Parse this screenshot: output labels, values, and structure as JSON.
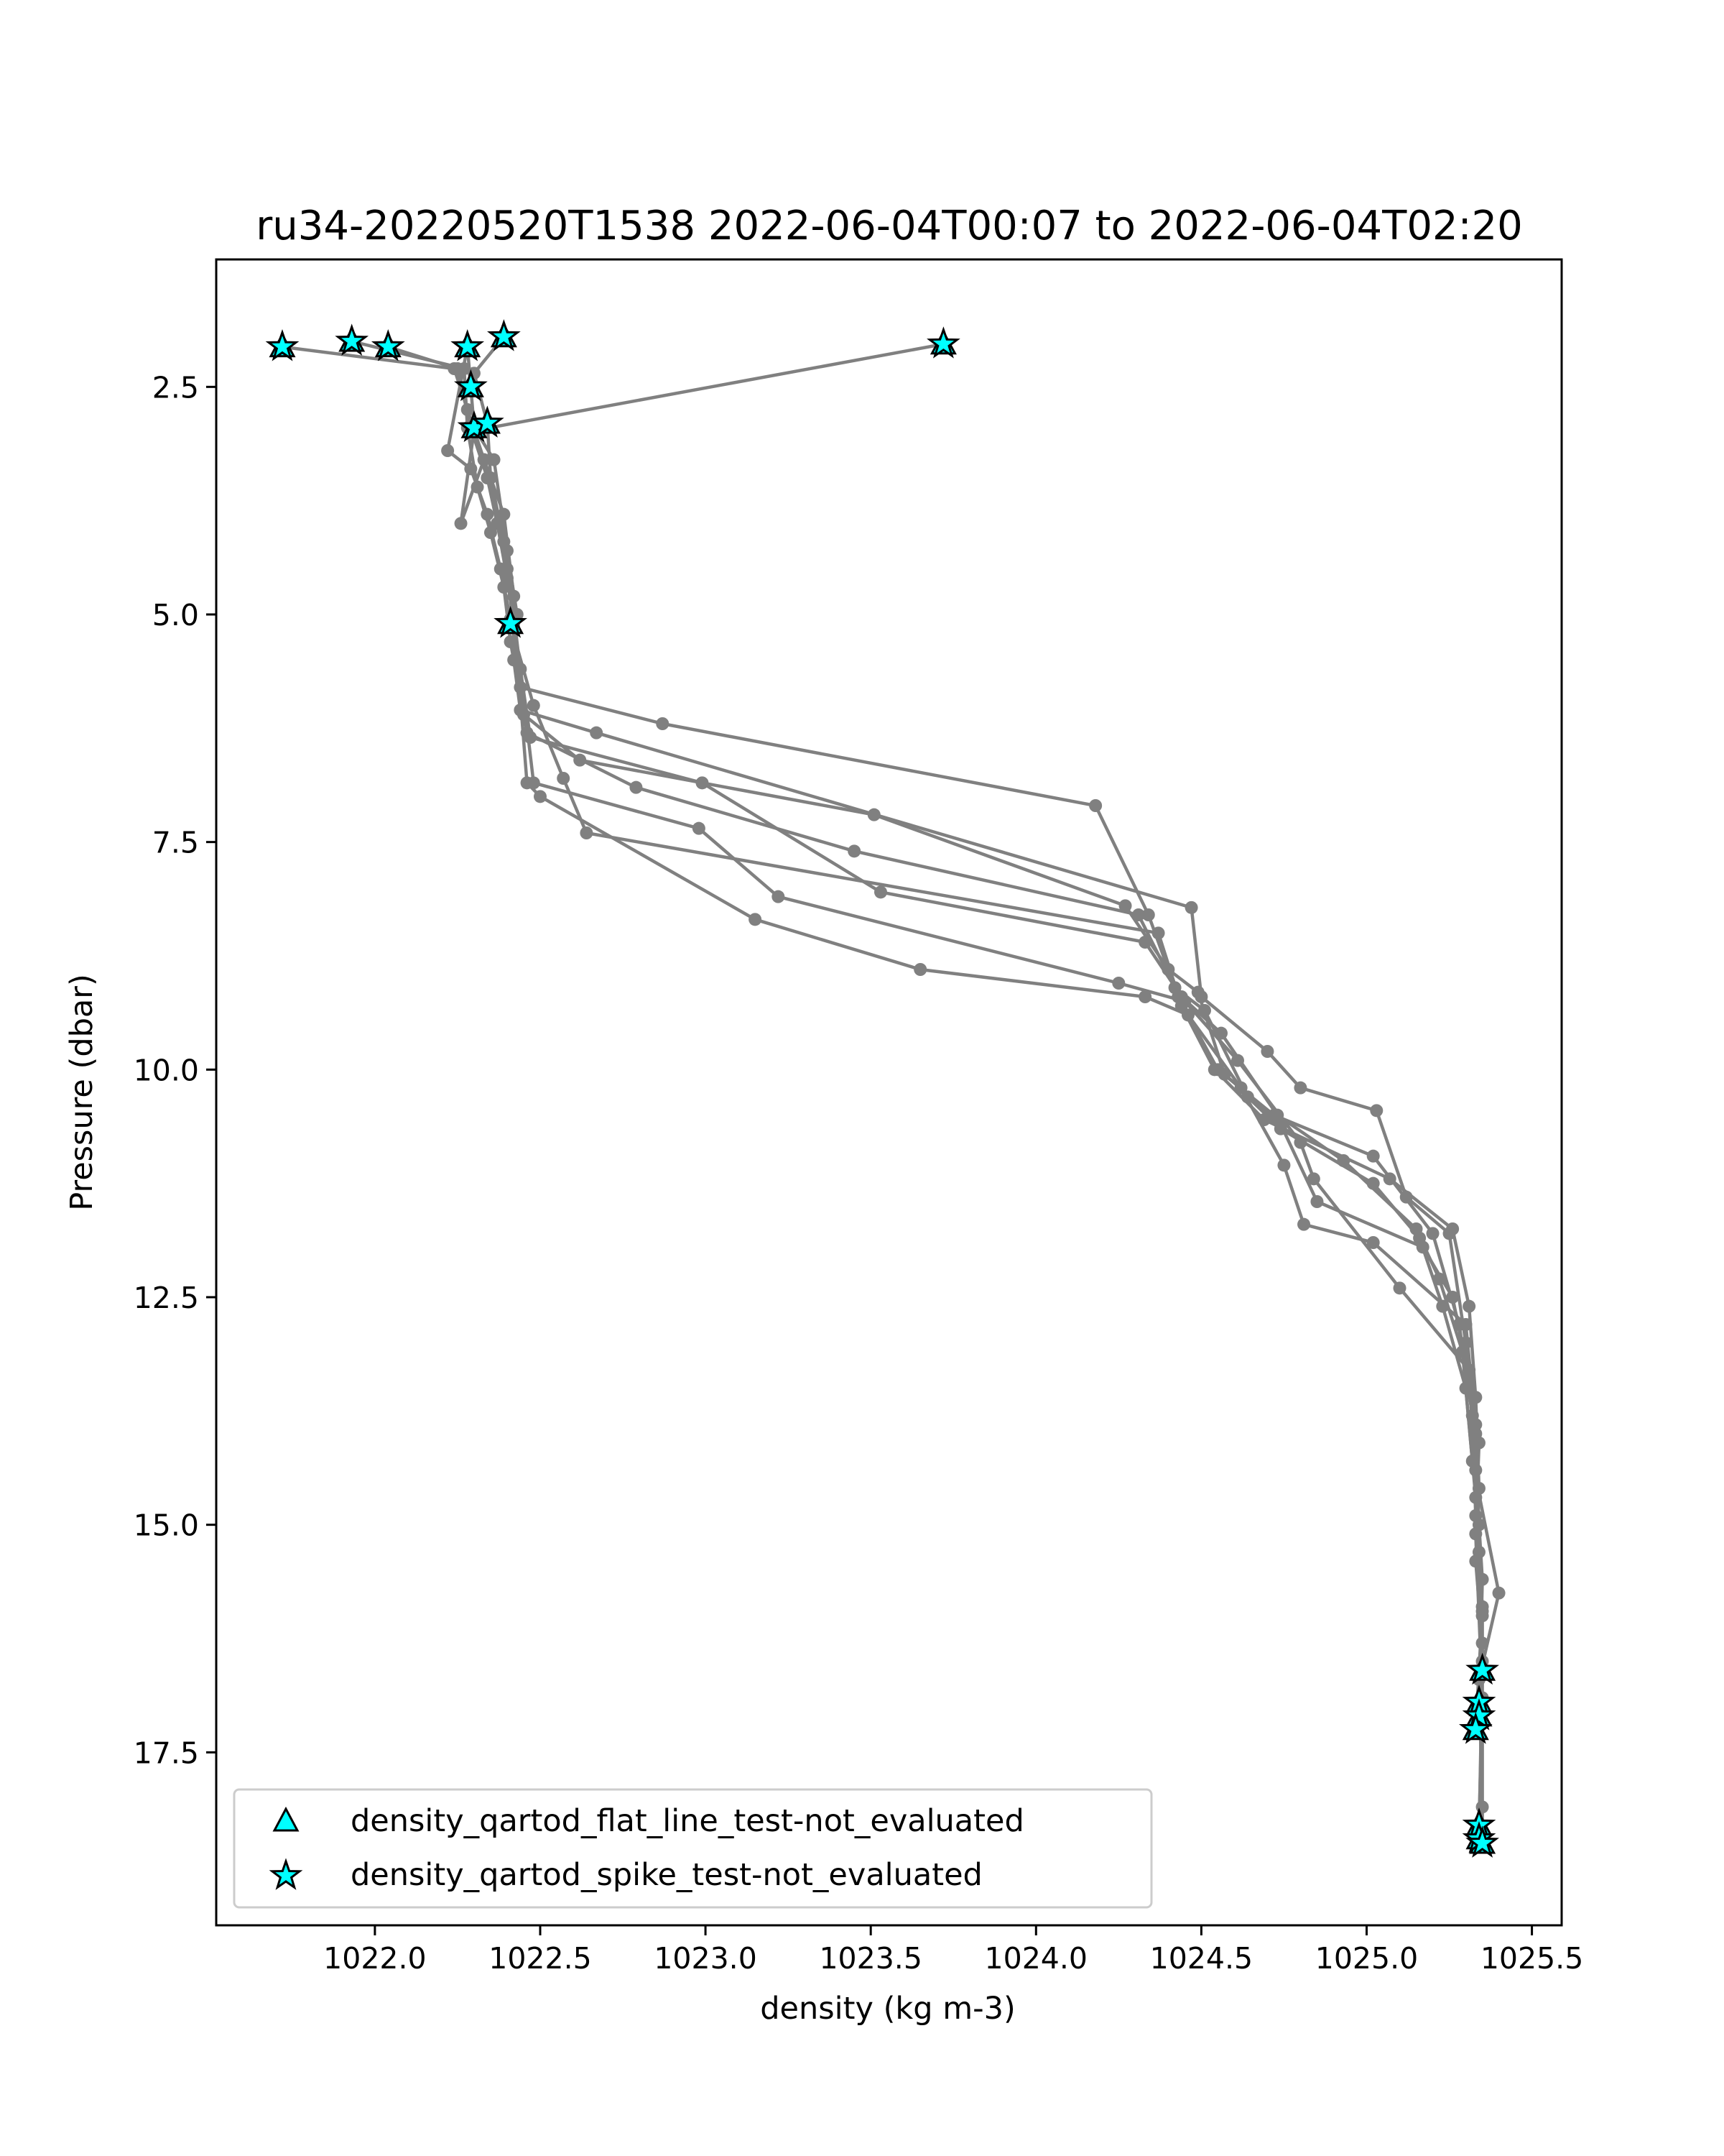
{
  "chart_data": {
    "type": "line",
    "title": "ru34-20220520T1538 2022-06-04T00:07 to 2022-06-04T02:20",
    "xlabel": "density (kg m-3)",
    "ylabel": "Pressure (dbar)",
    "xlim": [
      1021.52,
      1025.59
    ],
    "ylim": [
      19.4,
      1.1
    ],
    "y_inverted": true,
    "xticks": [
      "1022.0",
      "1022.5",
      "1023.0",
      "1023.5",
      "1024.0",
      "1024.5",
      "1025.0",
      "1025.5"
    ],
    "xtick_values": [
      1022.0,
      1022.5,
      1023.0,
      1023.5,
      1024.0,
      1024.5,
      1025.0,
      1025.5
    ],
    "yticks": [
      "2.5",
      "5.0",
      "7.5",
      "10.0",
      "12.5",
      "15.0",
      "17.5"
    ],
    "ytick_values": [
      2.5,
      5.0,
      7.5,
      10.0,
      12.5,
      15.0,
      17.5
    ],
    "grid": false,
    "legend_position": "lower-left",
    "colors": {
      "line": "#808080",
      "marker": "#00ffff",
      "marker_edge": "#000000"
    },
    "series": [
      {
        "values": [
          [
            1022.28,
            2.06
          ],
          [
            1022.29,
            2.5
          ],
          [
            1022.3,
            2.95
          ],
          [
            1022.36,
            3.3
          ],
          [
            1022.4,
            4.3
          ],
          [
            1022.43,
            5.0
          ],
          [
            1022.42,
            5.5
          ],
          [
            1022.44,
            6.05
          ],
          [
            1022.67,
            6.3
          ],
          [
            1024.47,
            8.22
          ],
          [
            1024.5,
            9.2
          ],
          [
            1024.7,
            9.8
          ],
          [
            1024.8,
            10.2
          ],
          [
            1025.03,
            10.45
          ],
          [
            1025.12,
            11.4
          ],
          [
            1025.25,
            11.8
          ],
          [
            1025.3,
            13.0
          ],
          [
            1025.33,
            14.0
          ],
          [
            1025.34,
            15.0
          ],
          [
            1025.35,
            16.0
          ],
          [
            1025.35,
            16.6
          ]
        ]
      },
      {
        "values": [
          [
            1022.04,
            2.06
          ],
          [
            1022.25,
            2.3
          ],
          [
            1022.29,
            2.95
          ],
          [
            1022.34,
            3.5
          ],
          [
            1022.37,
            4.0
          ],
          [
            1022.4,
            4.6
          ],
          [
            1022.42,
            5.1
          ],
          [
            1022.44,
            5.8
          ],
          [
            1022.87,
            6.2
          ],
          [
            1024.18,
            7.1
          ],
          [
            1024.34,
            8.3
          ],
          [
            1024.43,
            9.2
          ],
          [
            1024.55,
            10.0
          ],
          [
            1024.72,
            10.5
          ],
          [
            1025.02,
            10.95
          ],
          [
            1025.2,
            11.8
          ],
          [
            1025.28,
            12.8
          ],
          [
            1025.32,
            13.8
          ],
          [
            1025.33,
            14.9
          ],
          [
            1025.35,
            15.9
          ],
          [
            1025.34,
            16.95
          ]
        ]
      },
      {
        "values": [
          [
            1021.72,
            2.06
          ],
          [
            1022.24,
            2.3
          ],
          [
            1022.28,
            2.75
          ],
          [
            1022.33,
            3.3
          ],
          [
            1022.39,
            3.9
          ],
          [
            1022.42,
            4.8
          ],
          [
            1022.42,
            5.15
          ],
          [
            1022.45,
            6.1
          ],
          [
            1022.62,
            6.6
          ],
          [
            1023.51,
            7.2
          ],
          [
            1024.27,
            8.2
          ],
          [
            1024.4,
            8.9
          ],
          [
            1024.49,
            9.15
          ],
          [
            1024.57,
            10.05
          ],
          [
            1024.74,
            10.6
          ],
          [
            1024.85,
            11.45
          ],
          [
            1025.17,
            11.95
          ],
          [
            1025.26,
            12.5
          ],
          [
            1025.31,
            13.4
          ],
          [
            1025.33,
            14.4
          ],
          [
            1025.35,
            15.6
          ],
          [
            1025.34,
            17.1
          ]
        ]
      },
      {
        "values": [
          [
            1021.93,
            2.0
          ],
          [
            1022.27,
            2.3
          ],
          [
            1022.28,
            2.95
          ],
          [
            1022.31,
            3.6
          ],
          [
            1022.35,
            4.1
          ],
          [
            1022.39,
            4.7
          ],
          [
            1022.41,
            5.3
          ],
          [
            1022.46,
            6.3
          ],
          [
            1022.79,
            6.9
          ],
          [
            1023.45,
            7.6
          ],
          [
            1024.31,
            8.3
          ],
          [
            1024.42,
            9.1
          ],
          [
            1024.51,
            9.35
          ],
          [
            1024.64,
            10.3
          ],
          [
            1024.74,
            10.65
          ],
          [
            1025.02,
            11.25
          ],
          [
            1025.16,
            11.85
          ],
          [
            1025.23,
            12.6
          ],
          [
            1025.3,
            13.5
          ],
          [
            1025.33,
            14.7
          ],
          [
            1025.35,
            15.95
          ],
          [
            1025.33,
            17.25
          ]
        ]
      },
      {
        "values": [
          [
            1022.28,
            2.06
          ],
          [
            1022.22,
            3.2
          ],
          [
            1022.29,
            3.4
          ],
          [
            1022.34,
            3.9
          ],
          [
            1022.38,
            4.5
          ],
          [
            1022.41,
            5.05
          ],
          [
            1022.44,
            5.6
          ],
          [
            1022.47,
            6.35
          ],
          [
            1022.99,
            6.85
          ],
          [
            1023.53,
            8.05
          ],
          [
            1024.33,
            8.6
          ],
          [
            1024.44,
            9.2
          ],
          [
            1024.56,
            9.6
          ],
          [
            1024.73,
            10.5
          ],
          [
            1024.93,
            11.0
          ],
          [
            1025.15,
            11.75
          ],
          [
            1025.22,
            12.3
          ],
          [
            1025.29,
            13.1
          ],
          [
            1025.32,
            14.3
          ],
          [
            1025.4,
            15.75
          ],
          [
            1025.34,
            16.7
          ],
          [
            1025.35,
            18.1
          ]
        ]
      },
      {
        "values": [
          [
            1023.72,
            2.03
          ],
          [
            1022.3,
            2.98
          ],
          [
            1022.26,
            4.0
          ],
          [
            1022.33,
            3.3
          ],
          [
            1022.37,
            4.0
          ],
          [
            1022.4,
            4.5
          ],
          [
            1022.42,
            5.0
          ],
          [
            1022.48,
            6.85
          ],
          [
            1022.98,
            7.35
          ],
          [
            1023.22,
            8.1
          ],
          [
            1024.25,
            9.05
          ],
          [
            1024.45,
            9.25
          ],
          [
            1024.61,
            9.9
          ],
          [
            1024.8,
            10.8
          ],
          [
            1024.84,
            11.2
          ],
          [
            1025.1,
            12.4
          ],
          [
            1025.31,
            13.3
          ],
          [
            1025.34,
            14.1
          ],
          [
            1025.33,
            15.1
          ],
          [
            1025.35,
            16.9
          ],
          [
            1025.34,
            18.3
          ]
        ]
      },
      {
        "values": [
          [
            1022.39,
            1.95
          ],
          [
            1022.3,
            2.35
          ],
          [
            1022.34,
            2.9
          ],
          [
            1022.35,
            3.5
          ],
          [
            1022.39,
            4.2
          ],
          [
            1022.42,
            5.0
          ],
          [
            1022.46,
            6.85
          ],
          [
            1022.5,
            7.0
          ],
          [
            1023.15,
            8.35
          ],
          [
            1023.65,
            8.9
          ],
          [
            1024.33,
            9.2
          ],
          [
            1024.46,
            9.4
          ],
          [
            1024.62,
            10.2
          ],
          [
            1024.75,
            11.05
          ],
          [
            1024.81,
            11.7
          ],
          [
            1025.02,
            11.9
          ],
          [
            1025.3,
            12.8
          ],
          [
            1025.33,
            13.9
          ],
          [
            1025.34,
            15.3
          ],
          [
            1025.35,
            16.5
          ],
          [
            1025.34,
            18.45
          ]
        ]
      },
      {
        "values": [
          [
            1022.41,
            5.1
          ],
          [
            1022.48,
            6.0
          ],
          [
            1022.57,
            6.8
          ],
          [
            1022.64,
            7.4
          ],
          [
            1024.37,
            8.5
          ],
          [
            1024.44,
            9.3
          ],
          [
            1024.54,
            10.0
          ],
          [
            1024.69,
            10.55
          ],
          [
            1025.07,
            11.2
          ],
          [
            1025.26,
            11.75
          ],
          [
            1025.31,
            12.6
          ],
          [
            1025.33,
            13.6
          ],
          [
            1025.34,
            14.6
          ],
          [
            1025.33,
            15.4
          ],
          [
            1025.35,
            16.3
          ],
          [
            1025.35,
            18.5
          ]
        ]
      }
    ],
    "flagged": [
      {
        "name": "density_qartod_flat_line_test-not_evaluated",
        "marker": "triangle",
        "points": [
          [
            1021.72,
            2.06
          ],
          [
            1021.93,
            2.0
          ],
          [
            1022.04,
            2.06
          ],
          [
            1022.28,
            2.06
          ],
          [
            1022.39,
            1.95
          ],
          [
            1023.72,
            2.03
          ],
          [
            1022.29,
            2.5
          ],
          [
            1022.3,
            2.95
          ],
          [
            1022.34,
            2.9
          ],
          [
            1022.41,
            5.1
          ],
          [
            1025.35,
            16.6
          ],
          [
            1025.34,
            16.95
          ],
          [
            1025.34,
            17.1
          ],
          [
            1025.33,
            17.25
          ],
          [
            1025.34,
            18.3
          ],
          [
            1025.34,
            18.45
          ],
          [
            1025.35,
            18.5
          ]
        ]
      },
      {
        "name": "density_qartod_spike_test-not_evaluated",
        "marker": "star",
        "points": [
          [
            1021.72,
            2.06
          ],
          [
            1021.93,
            2.0
          ],
          [
            1022.04,
            2.06
          ],
          [
            1022.28,
            2.06
          ],
          [
            1022.39,
            1.95
          ],
          [
            1023.72,
            2.03
          ],
          [
            1022.29,
            2.5
          ],
          [
            1022.3,
            2.95
          ],
          [
            1022.34,
            2.9
          ],
          [
            1022.41,
            5.1
          ],
          [
            1025.35,
            16.6
          ],
          [
            1025.34,
            16.95
          ],
          [
            1025.34,
            17.1
          ],
          [
            1025.33,
            17.25
          ],
          [
            1025.34,
            18.3
          ],
          [
            1025.34,
            18.45
          ],
          [
            1025.35,
            18.5
          ]
        ]
      }
    ]
  }
}
